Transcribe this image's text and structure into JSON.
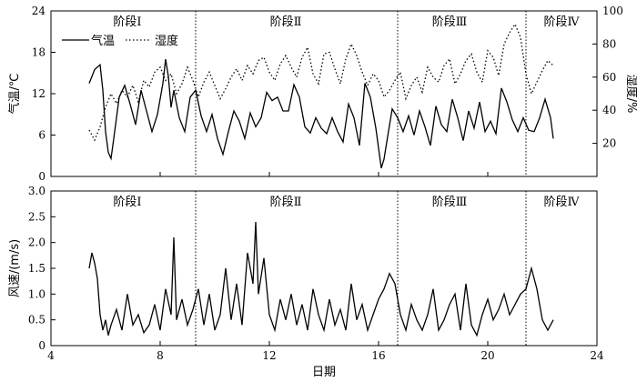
{
  "chart_data": {
    "type": "line",
    "x_label": "日期",
    "x_range": [
      4,
      24
    ],
    "x_ticks": [
      4,
      8,
      12,
      16,
      20,
      24
    ],
    "stage_boundaries": [
      9.3,
      16.7,
      21.4
    ],
    "stages": [
      {
        "label": "阶段Ⅰ",
        "x": 6.8
      },
      {
        "label": "阶段Ⅱ",
        "x": 12.6
      },
      {
        "label": "阶段Ⅲ",
        "x": 18.6
      },
      {
        "label": "阶段Ⅳ",
        "x": 22.7
      }
    ],
    "top_panel": {
      "y_left_label": "气温/℃",
      "y_left_range": [
        0,
        24
      ],
      "y_left_ticks": [
        0,
        6,
        12,
        18,
        24
      ],
      "y_right_label": "湿度/%",
      "y_right_range": [
        0,
        100
      ],
      "y_right_ticks": [
        20,
        40,
        60,
        80,
        100
      ],
      "legend": {
        "placement": "top-left"
      },
      "series": [
        {
          "name": "气温",
          "axis": "left",
          "style": "solid",
          "x": [
            5.4,
            5.6,
            5.8,
            5.9,
            6.0,
            6.1,
            6.2,
            6.3,
            6.5,
            6.7,
            6.9,
            7.1,
            7.3,
            7.5,
            7.7,
            7.9,
            8.1,
            8.2,
            8.3,
            8.4,
            8.5,
            8.7,
            8.9,
            9.1,
            9.3,
            9.5,
            9.7,
            9.9,
            10.1,
            10.3,
            10.5,
            10.7,
            10.9,
            11.1,
            11.3,
            11.5,
            11.7,
            11.9,
            12.1,
            12.3,
            12.5,
            12.7,
            12.9,
            13.1,
            13.3,
            13.5,
            13.7,
            13.9,
            14.1,
            14.3,
            14.5,
            14.7,
            14.9,
            15.1,
            15.3,
            15.5,
            15.7,
            15.9,
            16.1,
            16.2,
            16.3,
            16.5,
            16.7,
            16.9,
            17.1,
            17.3,
            17.5,
            17.7,
            17.9,
            18.1,
            18.3,
            18.5,
            18.7,
            18.9,
            19.1,
            19.3,
            19.5,
            19.7,
            19.9,
            20.1,
            20.3,
            20.5,
            20.7,
            20.9,
            21.1,
            21.3,
            21.5,
            21.7,
            21.9,
            22.1,
            22.3,
            22.4
          ],
          "y": [
            13.5,
            15.5,
            16.2,
            12.5,
            6.5,
            3.5,
            2.6,
            5.5,
            11.5,
            13.2,
            10.5,
            7.5,
            12.5,
            9.5,
            6.5,
            9,
            13.5,
            17,
            14.5,
            10,
            12.5,
            8.5,
            6.5,
            11.5,
            12.5,
            8.8,
            6.5,
            9,
            5.5,
            3.2,
            6.5,
            9.5,
            8,
            5.5,
            9.2,
            7.2,
            8.5,
            12.2,
            11,
            11.5,
            9.5,
            9.5,
            13.3,
            11.5,
            7.2,
            6.3,
            8.5,
            7,
            6.2,
            8.5,
            6.5,
            5,
            10.5,
            8.5,
            4.5,
            13.5,
            11.5,
            7,
            1.2,
            2.5,
            5,
            9.8,
            8.5,
            6.5,
            8.8,
            6,
            9.5,
            7.2,
            4.5,
            10.2,
            7.5,
            6.5,
            11.2,
            8.5,
            5.2,
            9.5,
            7,
            10.8,
            6.5,
            8,
            6.2,
            12.8,
            10.8,
            8.2,
            6.5,
            8.5,
            6.7,
            6.5,
            8.5,
            11.2,
            8.5,
            5.5
          ]
        },
        {
          "name": "湿度",
          "axis": "right",
          "style": "dotted",
          "x": [
            5.4,
            5.6,
            5.8,
            6.0,
            6.2,
            6.4,
            6.6,
            6.8,
            7.0,
            7.2,
            7.4,
            7.6,
            7.8,
            8.0,
            8.2,
            8.4,
            8.6,
            8.8,
            9.0,
            9.2,
            9.4,
            9.6,
            9.8,
            10.0,
            10.2,
            10.4,
            10.6,
            10.8,
            11.0,
            11.2,
            11.4,
            11.6,
            11.8,
            12.0,
            12.2,
            12.4,
            12.6,
            12.8,
            13.0,
            13.2,
            13.4,
            13.6,
            13.8,
            14.0,
            14.2,
            14.4,
            14.6,
            14.8,
            15.0,
            15.2,
            15.4,
            15.6,
            15.8,
            16.0,
            16.2,
            16.4,
            16.6,
            16.8,
            17.0,
            17.2,
            17.4,
            17.6,
            17.8,
            18.0,
            18.2,
            18.4,
            18.6,
            18.8,
            19.0,
            19.2,
            19.4,
            19.6,
            19.8,
            20.0,
            20.2,
            20.4,
            20.6,
            20.8,
            21.0,
            21.2,
            21.4,
            21.6,
            21.8,
            22.0,
            22.2,
            22.4
          ],
          "y": [
            28,
            22,
            30,
            42,
            50,
            44,
            52,
            48,
            55,
            45,
            58,
            54,
            63,
            66,
            58,
            62,
            50,
            56,
            66,
            58,
            48,
            57,
            63,
            55,
            47,
            53,
            60,
            65,
            58,
            67,
            62,
            70,
            72,
            63,
            58,
            68,
            73,
            66,
            60,
            72,
            78,
            62,
            56,
            74,
            75,
            65,
            56,
            71,
            80,
            73,
            63,
            55,
            62,
            58,
            48,
            52,
            58,
            63,
            47,
            55,
            60,
            51,
            66,
            60,
            57,
            67,
            71,
            56,
            62,
            70,
            74,
            63,
            57,
            76,
            72,
            61,
            80,
            87,
            92,
            84,
            62,
            50,
            57,
            64,
            70,
            67
          ]
        }
      ]
    },
    "bottom_panel": {
      "y_label": "风速/(m/s)",
      "y_range": [
        0,
        3.0
      ],
      "y_ticks": [
        0,
        0.5,
        1.0,
        1.5,
        2.0,
        2.5,
        3.0
      ],
      "y_tick_labels": [
        "0",
        "0.5",
        "1.0",
        "1.5",
        "2.0",
        "2.5",
        "3.0"
      ],
      "series": [
        {
          "name": "风速",
          "style": "solid",
          "x": [
            5.4,
            5.5,
            5.6,
            5.7,
            5.8,
            5.9,
            6.0,
            6.1,
            6.2,
            6.4,
            6.6,
            6.8,
            7.0,
            7.2,
            7.4,
            7.6,
            7.8,
            8.0,
            8.2,
            8.4,
            8.5,
            8.6,
            8.8,
            9.0,
            9.2,
            9.4,
            9.6,
            9.8,
            10.0,
            10.2,
            10.4,
            10.6,
            10.8,
            11.0,
            11.2,
            11.4,
            11.5,
            11.6,
            11.8,
            12.0,
            12.2,
            12.4,
            12.6,
            12.8,
            13.0,
            13.2,
            13.4,
            13.6,
            13.8,
            14.0,
            14.2,
            14.4,
            14.6,
            14.8,
            15.0,
            15.2,
            15.4,
            15.6,
            15.8,
            16.0,
            16.2,
            16.4,
            16.6,
            16.8,
            17.0,
            17.2,
            17.4,
            17.6,
            17.8,
            18.0,
            18.2,
            18.4,
            18.6,
            18.8,
            19.0,
            19.2,
            19.4,
            19.6,
            19.8,
            20.0,
            20.2,
            20.4,
            20.6,
            20.8,
            21.0,
            21.2,
            21.4,
            21.6,
            21.8,
            22.0,
            22.2,
            22.4
          ],
          "y": [
            1.5,
            1.8,
            1.6,
            1.3,
            0.6,
            0.3,
            0.5,
            0.2,
            0.4,
            0.7,
            0.3,
            1.0,
            0.4,
            0.6,
            0.25,
            0.4,
            0.8,
            0.3,
            1.1,
            0.6,
            2.1,
            0.5,
            0.9,
            0.4,
            0.7,
            1.1,
            0.4,
            1.0,
            0.3,
            0.6,
            1.5,
            0.5,
            1.2,
            0.4,
            1.8,
            1.2,
            2.4,
            1.0,
            1.7,
            0.6,
            0.3,
            0.9,
            0.5,
            1.0,
            0.4,
            0.8,
            0.3,
            1.1,
            0.6,
            0.3,
            0.9,
            0.4,
            0.7,
            0.3,
            1.2,
            0.5,
            0.8,
            0.3,
            0.6,
            0.9,
            1.1,
            1.4,
            1.2,
            0.6,
            0.3,
            0.8,
            0.5,
            0.3,
            0.6,
            1.1,
            0.3,
            0.5,
            0.8,
            1.0,
            0.3,
            1.2,
            0.4,
            0.2,
            0.6,
            0.9,
            0.5,
            0.7,
            1.0,
            0.6,
            0.8,
            1.0,
            1.1,
            1.5,
            1.1,
            0.5,
            0.3,
            0.5
          ]
        }
      ]
    }
  }
}
